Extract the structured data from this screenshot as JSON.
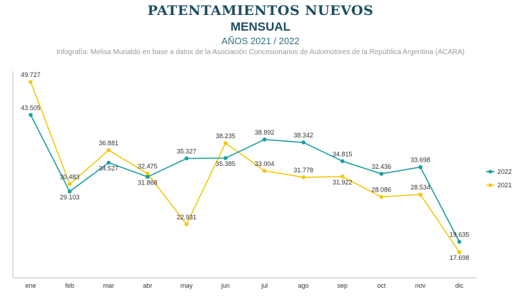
{
  "header": {
    "title": "PATENTAMIENTOS NUEVOS",
    "subtitle": "MENSUAL",
    "years": "AÑOS 2021 / 2022",
    "source": "Infografía: Melisa Murialdo en base a datos de la Asociación Concesionarios de Automotores de la República Argentina (ACARA)"
  },
  "chart_data": {
    "type": "line",
    "title": "PATENTAMIENTOS NUEVOS",
    "categories": [
      "ene",
      "feb",
      "mar",
      "abr",
      "may",
      "jun",
      "jul",
      "ago",
      "sep",
      "oct",
      "nov",
      "dic"
    ],
    "series": [
      {
        "name": "2022",
        "color": "#1a9ea0",
        "values": [
          43505,
          29103,
          34527,
          31868,
          35327,
          35385,
          38892,
          38342,
          34815,
          32436,
          33698,
          19635
        ],
        "labels": [
          "43.505",
          "29.103",
          "34.527",
          "31.868",
          "35.327",
          "35.385",
          "38.892",
          "38.342",
          "34.815",
          "32.436",
          "33.698",
          "19.635"
        ]
      },
      {
        "name": "2021",
        "color": "#f2c811",
        "values": [
          49727,
          30483,
          36881,
          32475,
          22931,
          38235,
          33004,
          31778,
          31922,
          28086,
          28534,
          17698
        ],
        "labels": [
          "49.727",
          "30.483",
          "36.881",
          "32.475",
          "22.931",
          "38.235",
          "33.004",
          "31.778",
          "31.922",
          "28.086",
          "28.534",
          "17.698"
        ]
      }
    ],
    "ylim": [
      15000,
      52000
    ],
    "grid": false,
    "legend": "right"
  }
}
